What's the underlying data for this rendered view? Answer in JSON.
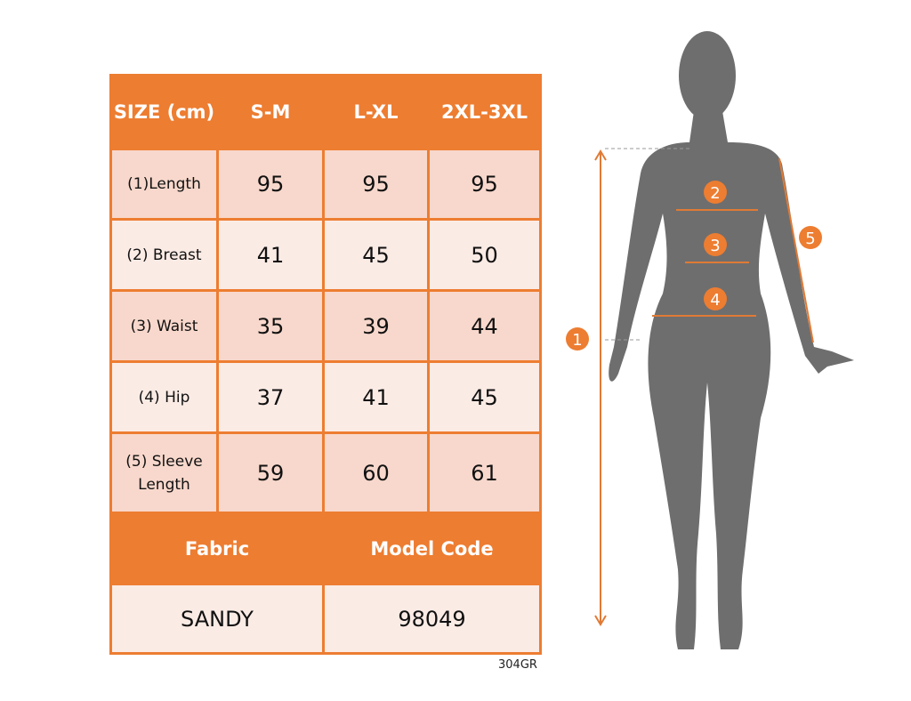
{
  "table": {
    "header": [
      "SIZE (cm)",
      "S-M",
      "L-XL",
      "2XL-3XL"
    ],
    "rows": [
      {
        "label": "(1)Length",
        "values": [
          "95",
          "95",
          "95"
        ]
      },
      {
        "label": "(2) Breast",
        "values": [
          "41",
          "45",
          "50"
        ]
      },
      {
        "label": "(3) Waist",
        "values": [
          "35",
          "39",
          "44"
        ]
      },
      {
        "label": "(4) Hip",
        "values": [
          "37",
          "41",
          "45"
        ]
      },
      {
        "label": "(5) Sleeve Length",
        "values": [
          "59",
          "60",
          "61"
        ]
      }
    ],
    "footer_header": [
      "Fabric",
      "Model Code"
    ],
    "footer_values": [
      "SANDY",
      "98049"
    ]
  },
  "product_code": "304GR",
  "figure": {
    "markers": [
      "1",
      "2",
      "3",
      "4",
      "5"
    ]
  },
  "colors": {
    "accent": "#ED7D31",
    "row_dark": "#F8D8CC",
    "row_light": "#FBEBE5",
    "silhouette": "#6E6E6E"
  }
}
